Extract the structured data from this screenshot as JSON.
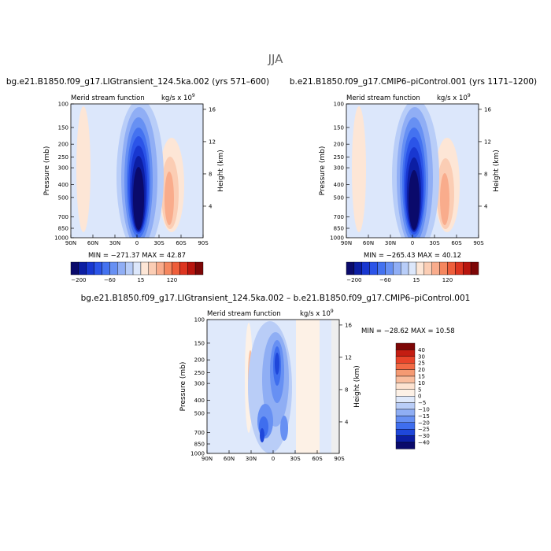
{
  "figure": {
    "season": "JJA",
    "panels": [
      {
        "title": "bg.e21.B1850.f09_g17.LIGtransient_124.5ka.002 (yrs 571–600)",
        "subtitle": "Merid stream function",
        "units": "kg/s x 10",
        "units_exp": "9",
        "min_max": "MIN = −271.37   MAX =  42.87"
      },
      {
        "title": "b.e21.B1850.f09_g17.CMIP6–piControl.001 (yrs 1171–1200)",
        "subtitle": "Merid stream function",
        "units": "kg/s x 10",
        "units_exp": "9",
        "min_max": "MIN = −265.43   MAX =  40.12"
      },
      {
        "title": "bg.e21.B1850.f09_g17.LIGtransient_124.5ka.002 – b.e21.B1850.f09_g17.CMIP6–piControl.001",
        "subtitle": "Merid stream function",
        "units": "kg/s x 10",
        "units_exp": "9",
        "min_max": "MIN = −28.62   MAX =  10.58"
      }
    ]
  },
  "chart_data": [
    {
      "type": "heatmap",
      "xlabel": "",
      "ylabel": "Pressure  (mb)",
      "ylabel_right": "Height  (km)",
      "x_ticks": [
        "90N",
        "60N",
        "30N",
        "0",
        "30S",
        "60S",
        "90S"
      ],
      "x_range": [
        90,
        -90
      ],
      "y_ticks": [
        "100",
        "150",
        "200",
        "250",
        "300",
        "400",
        "500",
        "700",
        "850",
        "1000"
      ],
      "y_range_mb": [
        100,
        1000
      ],
      "y_scale": "log",
      "height_ticks": [
        "16",
        "12",
        "8",
        "4"
      ],
      "colorbar_ticks": [
        "−200",
        "−60",
        "15",
        "120"
      ],
      "colorbar_colors": [
        "#0a0a6b",
        "#0c1ea3",
        "#1837d0",
        "#2b54e8",
        "#4472f0",
        "#6790f3",
        "#90aef5",
        "#b8cdf8",
        "#dce7fb",
        "#fde6d6",
        "#fbcdb4",
        "#f9ac8c",
        "#f5875f",
        "#ee5e3b",
        "#dd3520",
        "#b8150e",
        "#7d0606"
      ],
      "extrema": {
        "min": -271.37,
        "max": 42.87
      }
    },
    {
      "type": "heatmap",
      "xlabel": "",
      "ylabel": "Pressure  (mb)",
      "ylabel_right": "Height  (km)",
      "x_ticks": [
        "90N",
        "60N",
        "30N",
        "0",
        "30S",
        "60S",
        "90S"
      ],
      "x_range": [
        90,
        -90
      ],
      "y_ticks": [
        "100",
        "150",
        "200",
        "250",
        "300",
        "400",
        "500",
        "700",
        "850",
        "1000"
      ],
      "y_range_mb": [
        100,
        1000
      ],
      "y_scale": "log",
      "height_ticks": [
        "16",
        "12",
        "8",
        "4"
      ],
      "colorbar_ticks": [
        "−200",
        "−60",
        "15",
        "120"
      ],
      "colorbar_colors": [
        "#0a0a6b",
        "#0c1ea3",
        "#1837d0",
        "#2b54e8",
        "#4472f0",
        "#6790f3",
        "#90aef5",
        "#b8cdf8",
        "#dce7fb",
        "#fde6d6",
        "#fbcdb4",
        "#f9ac8c",
        "#f5875f",
        "#ee5e3b",
        "#dd3520",
        "#b8150e",
        "#7d0606"
      ],
      "extrema": {
        "min": -265.43,
        "max": 40.12
      }
    },
    {
      "type": "heatmap",
      "xlabel": "",
      "ylabel": "Pressure  (mb)",
      "ylabel_right": "Height  (km)",
      "x_ticks": [
        "90N",
        "60N",
        "30N",
        "0",
        "30S",
        "60S",
        "90S"
      ],
      "x_range": [
        90,
        -90
      ],
      "y_ticks": [
        "100",
        "150",
        "200",
        "250",
        "300",
        "400",
        "500",
        "700",
        "850",
        "1000"
      ],
      "y_range_mb": [
        100,
        1000
      ],
      "y_scale": "log",
      "height_ticks": [
        "16",
        "12",
        "8",
        "4"
      ],
      "colorbar_levels": [
        "40",
        "30",
        "25",
        "20",
        "15",
        "10",
        "5",
        "0",
        "−5",
        "−10",
        "−15",
        "−20",
        "−25",
        "−30",
        "−40"
      ],
      "colorbar_colors": [
        "#7d0606",
        "#c41d12",
        "#e8442a",
        "#f26a45",
        "#f59a73",
        "#f9bd9e",
        "#fde3d1",
        "#fdf1e6",
        "#dfe9fb",
        "#b9cdf7",
        "#8faef4",
        "#6790f3",
        "#3f6eee",
        "#1f47da",
        "#0c1ea3",
        "#0a0a6b"
      ],
      "extrema": {
        "min": -28.62,
        "max": 10.58
      }
    }
  ]
}
